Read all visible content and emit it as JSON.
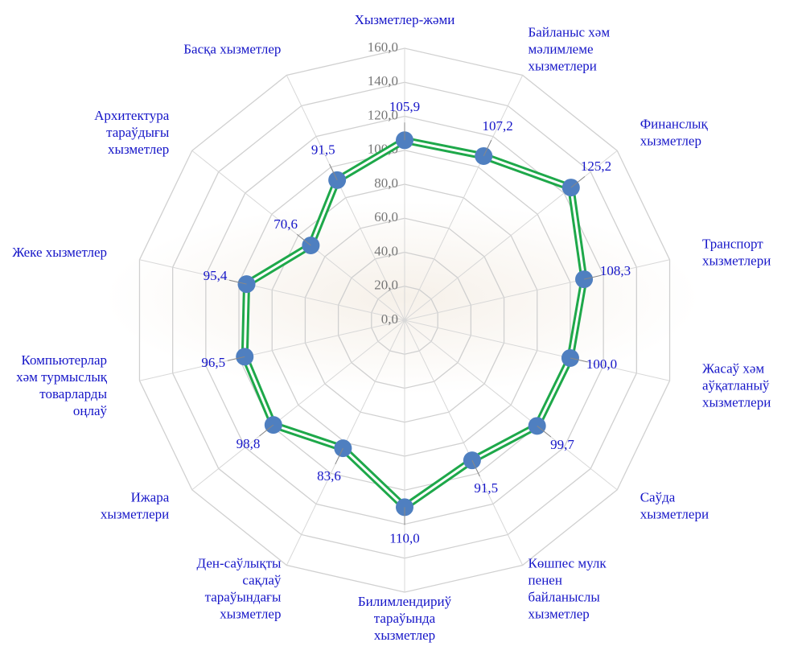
{
  "chart_data": {
    "type": "radar",
    "categories": [
      [
        "Хызметлер-жәми"
      ],
      [
        "Байланыс хәм",
        "мәлимлеме",
        "хызметлери"
      ],
      [
        "Финанслық",
        "хызметлер"
      ],
      [
        "Транспорт",
        "хызметлери"
      ],
      [
        "Жасаў хәм",
        "аўқатланыў",
        "хызметлери"
      ],
      [
        "Саўда",
        "хызметлери"
      ],
      [
        "Көшпес мулк",
        "пенен",
        "байланыслы",
        "хызметлер"
      ],
      [
        "Билимлендириў",
        "тараўында",
        "хызметлер"
      ],
      [
        "Ден-саўлықты",
        "сақлаў",
        "тараўындағы",
        "хызметлер"
      ],
      [
        "Ижара",
        "хызметлери"
      ],
      [
        "Компьютерлар",
        "хәм турмыслық",
        "товарларды",
        "оңлаў"
      ],
      [
        "Жеке хызметлер"
      ],
      [
        "Архитектура",
        "тараўдығы",
        "хызметлер"
      ],
      [
        "Басқа хызметлер"
      ]
    ],
    "series": [
      {
        "color": "#1ea84a",
        "marker_color": "#4f7fc0",
        "values": [
          105.9,
          107.2,
          125.2,
          108.3,
          100.0,
          99.7,
          91.5,
          110.0,
          83.6,
          98.8,
          96.5,
          95.4,
          70.6,
          91.5
        ],
        "value_labels": [
          "105,9",
          "107,2",
          "125,2",
          "108,3",
          "100,0",
          "99,7",
          "91,5",
          "110,0",
          "83,6",
          "98,8",
          "96,5",
          "95,4",
          "70,6",
          "91,5"
        ]
      }
    ],
    "ylim": [
      0,
      160
    ],
    "yticks": [
      {
        "value": 0,
        "label": "0,0"
      },
      {
        "value": 20,
        "label": "20,0"
      },
      {
        "value": 40,
        "label": "40,0"
      },
      {
        "value": 60,
        "label": "60,0"
      },
      {
        "value": 80,
        "label": "80,0"
      },
      {
        "value": 100,
        "label": "100,0"
      },
      {
        "value": 120,
        "label": "120,0"
      },
      {
        "value": 140,
        "label": "140,0"
      },
      {
        "value": 160,
        "label": "160,0"
      }
    ],
    "grid": true
  }
}
